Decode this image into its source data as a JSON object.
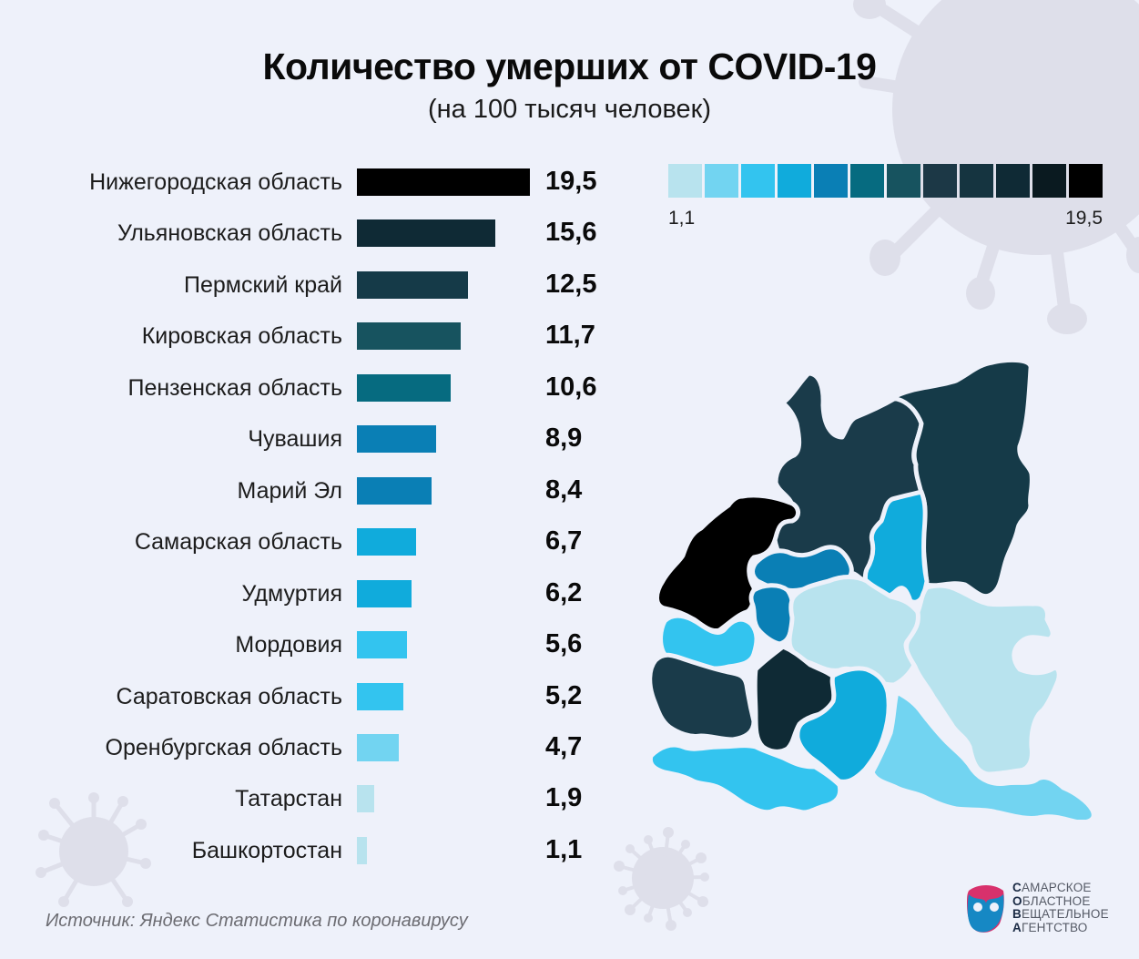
{
  "header": {
    "title": "Количество умерших от COVID-19",
    "subtitle": "(на 100 тысяч человек)"
  },
  "chart_data": {
    "type": "bar",
    "orientation": "horizontal",
    "title": "Количество умерших от COVID-19",
    "subtitle": "(на 100 тысяч человек)",
    "xlim": [
      0,
      19.5
    ],
    "categories": [
      "Нижегородская область",
      "Ульяновская область",
      "Пермский край",
      "Кировская область",
      "Пензенская область",
      "Чувашия",
      "Марий Эл",
      "Самарская область",
      "Удмуртия",
      "Мордовия",
      "Саратовская область",
      "Оренбургская область",
      "Татарстан",
      "Башкортостан"
    ],
    "values": [
      19.5,
      15.6,
      12.5,
      11.7,
      10.6,
      8.9,
      8.4,
      6.7,
      6.2,
      5.6,
      5.2,
      4.7,
      1.9,
      1.1
    ],
    "value_labels": [
      "19,5",
      "15,6",
      "12,5",
      "11,7",
      "10,6",
      "8,9",
      "8,4",
      "6,7",
      "6,2",
      "5,6",
      "5,2",
      "4,7",
      "1,9",
      "1,1"
    ],
    "bar_colors": [
      "#000000",
      "#0F2A35",
      "#153A48",
      "#17535F",
      "#066B80",
      "#0A7FB5",
      "#0A7FB5",
      "#10ABDC",
      "#10ABDC",
      "#33C4EF",
      "#33C4EF",
      "#72D4F1",
      "#B8E3EE",
      "#B8E3EE"
    ]
  },
  "legend": {
    "min_label": "1,1",
    "max_label": "19,5",
    "colors": [
      "#B8E3EE",
      "#72D4F1",
      "#33C4EF",
      "#10ABDC",
      "#0A7FB5",
      "#066B80",
      "#17535F",
      "#1C3846",
      "#153440",
      "#0F2A35",
      "#0A1A20",
      "#000000"
    ]
  },
  "map": {
    "regions": [
      {
        "name": "Кировская область",
        "color": "#1A3B4A"
      },
      {
        "name": "Пермский край",
        "color": "#153A48"
      },
      {
        "name": "Нижегородская область",
        "color": "#000000"
      },
      {
        "name": "Марий Эл",
        "color": "#0A7FB5"
      },
      {
        "name": "Чувашия",
        "color": "#0A7FB5"
      },
      {
        "name": "Удмуртия",
        "color": "#10ABDC"
      },
      {
        "name": "Татарстан",
        "color": "#B8E3EE"
      },
      {
        "name": "Башкортостан",
        "color": "#B8E3EE"
      },
      {
        "name": "Мордовия",
        "color": "#33C4EF"
      },
      {
        "name": "Пензенская область",
        "color": "#1A3B4A"
      },
      {
        "name": "Ульяновская область",
        "color": "#0F2A35"
      },
      {
        "name": "Самарская область",
        "color": "#10ABDC"
      },
      {
        "name": "Саратовская область",
        "color": "#33C4EF"
      },
      {
        "name": "Оренбургская область",
        "color": "#72D4F1"
      }
    ]
  },
  "footer": {
    "source": "Источник: Яндекс Статистика по коронавирусу",
    "logo_lines": [
      {
        "initial": "С",
        "rest": "АМАРСКОЕ"
      },
      {
        "initial": "О",
        "rest": "БЛАСТНОЕ"
      },
      {
        "initial": "В",
        "rest": "ЕЩАТЕЛЬНОЕ"
      },
      {
        "initial": "А",
        "rest": "ГЕНТСТВО"
      }
    ]
  },
  "theme": {
    "background": "#EEF1FA",
    "virus": "#DEDFEA"
  }
}
